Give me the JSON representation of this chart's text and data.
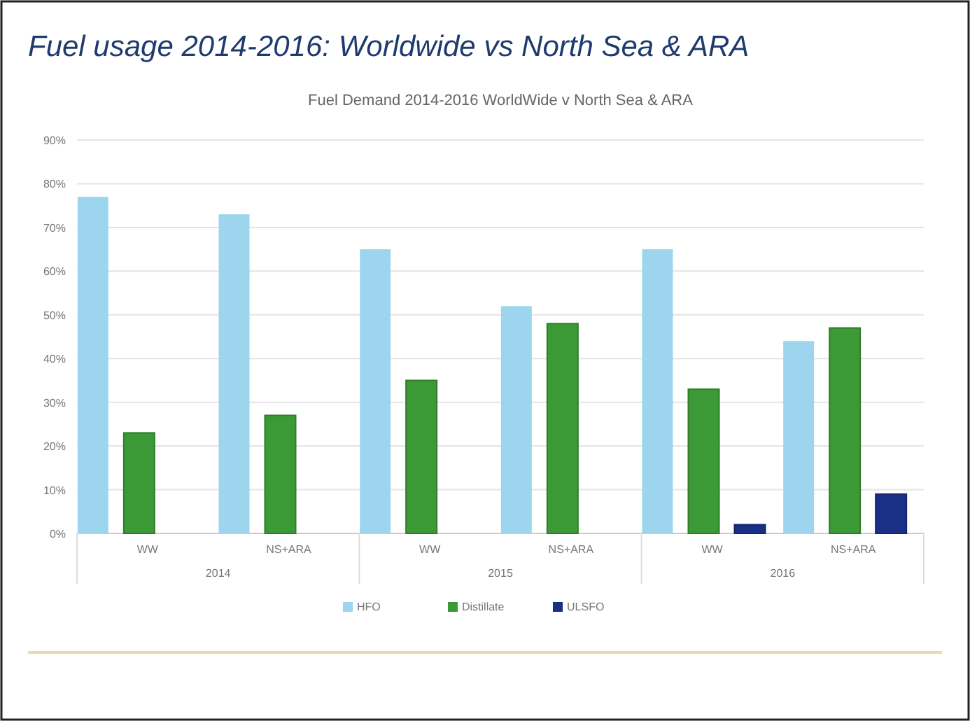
{
  "chart_data": {
    "type": "bar",
    "title": "Fuel usage 2014-2016: Worldwide vs North Sea & ARA",
    "subtitle": "Fuel Demand 2014-2016 WorldWide v North Sea & ARA",
    "categories": [
      "WW",
      "NS+ARA",
      "WW",
      "NS+ARA",
      "WW",
      "NS+ARA"
    ],
    "annotations": [
      "2014",
      "2015",
      "2016"
    ],
    "series": [
      {
        "name": "HFO",
        "color": "#9dd5ee",
        "values": [
          77,
          73,
          65,
          52,
          65,
          44
        ]
      },
      {
        "name": "Distillate",
        "color": "#3c9a36",
        "values": [
          23,
          27,
          35,
          48,
          33,
          47
        ]
      },
      {
        "name": "ULSFO",
        "color": "#1a2f86",
        "values": [
          null,
          null,
          null,
          null,
          2,
          9
        ]
      }
    ],
    "ylim": [
      0,
      90
    ],
    "yticks": [
      {
        "value": 0,
        "label": "0%"
      },
      {
        "value": 10,
        "label": "10%"
      },
      {
        "value": 20,
        "label": "20%"
      },
      {
        "value": 30,
        "label": "30%"
      },
      {
        "value": 40,
        "label": "40%"
      },
      {
        "value": 50,
        "label": "50%"
      },
      {
        "value": 60,
        "label": "60%"
      },
      {
        "value": 70,
        "label": "70%"
      },
      {
        "value": 80,
        "label": "80%"
      },
      {
        "value": 90,
        "label": "90%"
      }
    ],
    "grid": "y",
    "legend": "bottom"
  }
}
